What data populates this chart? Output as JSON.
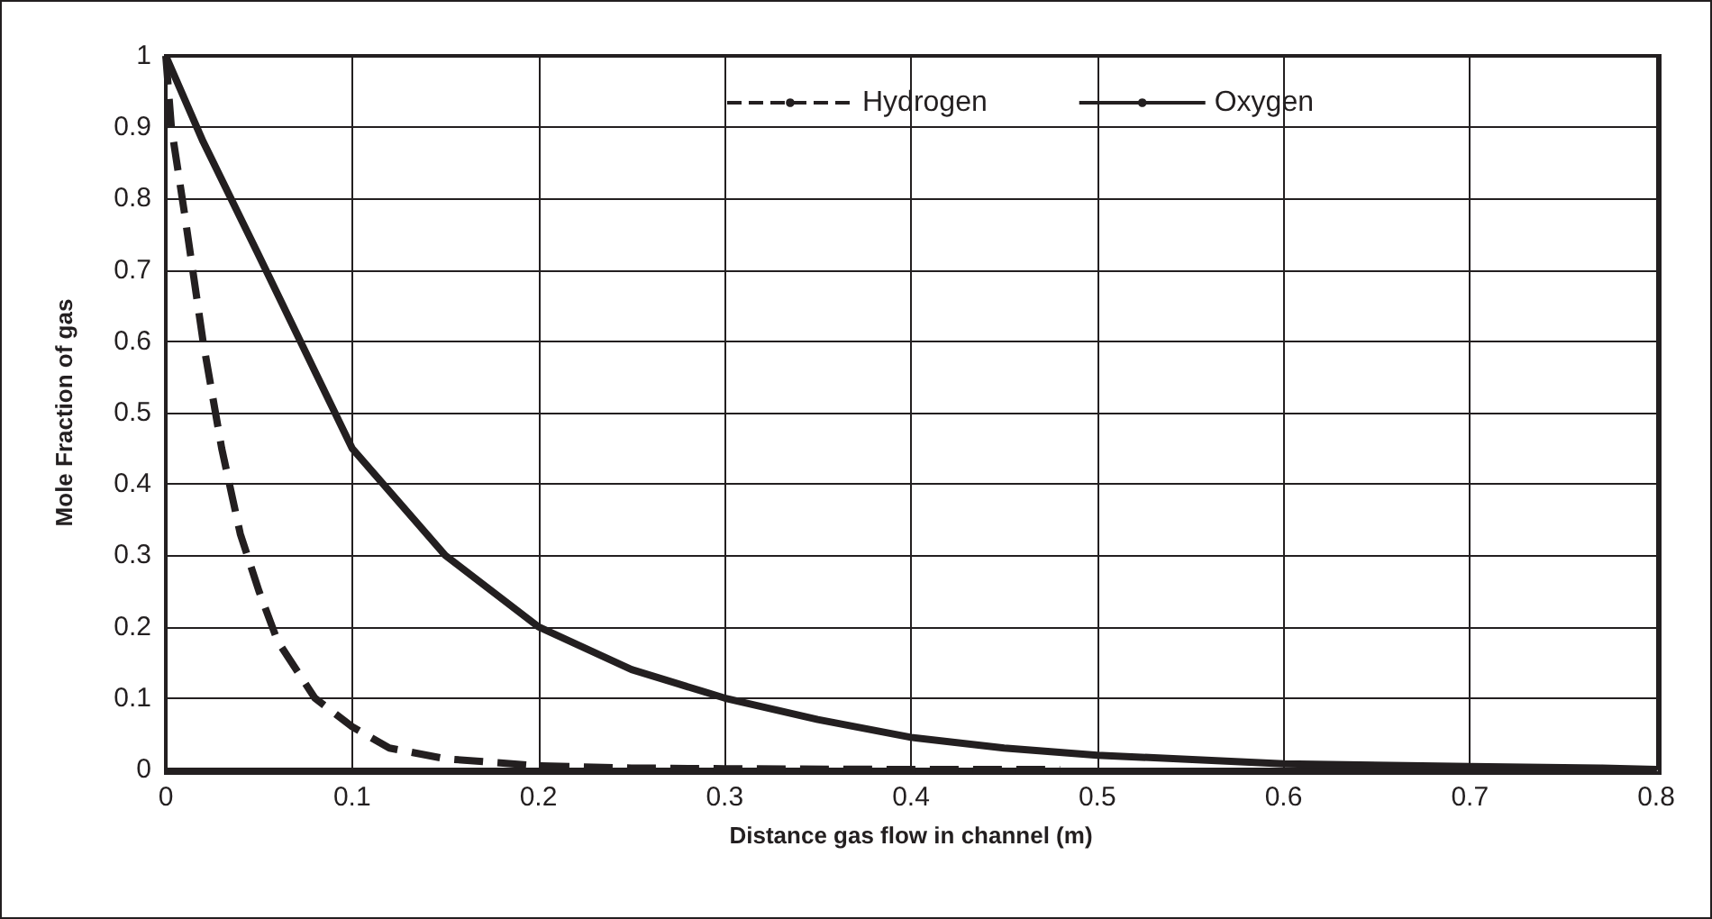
{
  "chart_data": {
    "type": "line",
    "xlabel": "Distance gas flow in channel (m)",
    "ylabel": "Mole Fraction of gas",
    "xlim": [
      0,
      0.8
    ],
    "xticks": [
      0,
      0.1,
      0.2,
      0.3,
      0.4,
      0.5,
      0.6,
      0.7,
      0.8
    ],
    "ylim": [
      0,
      1
    ],
    "yticks": [
      0,
      0.1,
      0.2,
      0.3,
      0.4,
      0.5,
      0.6,
      0.7,
      0.8,
      0.9,
      1
    ],
    "grid": true,
    "legend": "top right",
    "marker": "none",
    "series": [
      {
        "name": "Hydrogen",
        "color": "#231f20",
        "line_style": "dashed",
        "x": [
          0,
          0.003,
          0.01,
          0.02,
          0.03,
          0.04,
          0.05,
          0.06,
          0.08,
          0.1,
          0.12,
          0.15,
          0.2,
          0.25,
          0.3,
          0.4,
          0.48
        ],
        "values": [
          1,
          0.9,
          0.78,
          0.6,
          0.45,
          0.33,
          0.25,
          0.18,
          0.1,
          0.06,
          0.03,
          0.015,
          0.005,
          0.002,
          0.001,
          0,
          0
        ]
      },
      {
        "name": "Oxygen",
        "color": "#231f20",
        "line_style": "solid",
        "x": [
          0,
          0.02,
          0.05,
          0.1,
          0.15,
          0.2,
          0.25,
          0.3,
          0.35,
          0.4,
          0.45,
          0.5,
          0.6,
          0.7,
          0.77,
          0.8
        ],
        "values": [
          1,
          0.88,
          0.72,
          0.45,
          0.3,
          0.2,
          0.14,
          0.1,
          0.07,
          0.045,
          0.03,
          0.02,
          0.008,
          0.004,
          0.002,
          0
        ]
      }
    ]
  }
}
